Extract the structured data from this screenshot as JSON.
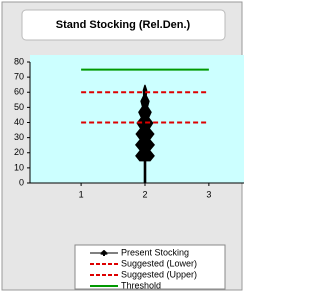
{
  "chart_data": {
    "type": "line",
    "title": "Stand Stocking (Rel.Den.)",
    "xlim": [
      0.2,
      3.55
    ],
    "xticks": [
      1,
      2,
      3
    ],
    "ylim": [
      0,
      80
    ],
    "yticks": [
      0,
      10,
      20,
      30,
      40,
      50,
      60,
      70,
      80
    ],
    "grid": false,
    "legend": "bottom",
    "series": [
      {
        "name": "Present Stocking",
        "color": "#000000",
        "marker": "tree",
        "style": "solid",
        "x": [
          2
        ],
        "values": [
          65
        ]
      },
      {
        "name": "Suggested (Lower)",
        "color": "#dd0000",
        "style": "dashed",
        "x": [
          1,
          3
        ],
        "values": [
          40,
          40
        ]
      },
      {
        "name": "Suggested (Upper)",
        "color": "#dd0000",
        "style": "dashed",
        "x": [
          1,
          3
        ],
        "values": [
          60,
          60
        ]
      },
      {
        "name": "Threshold",
        "color": "#009900",
        "style": "solid",
        "x": [
          1,
          3
        ],
        "values": [
          75,
          75
        ]
      }
    ]
  }
}
